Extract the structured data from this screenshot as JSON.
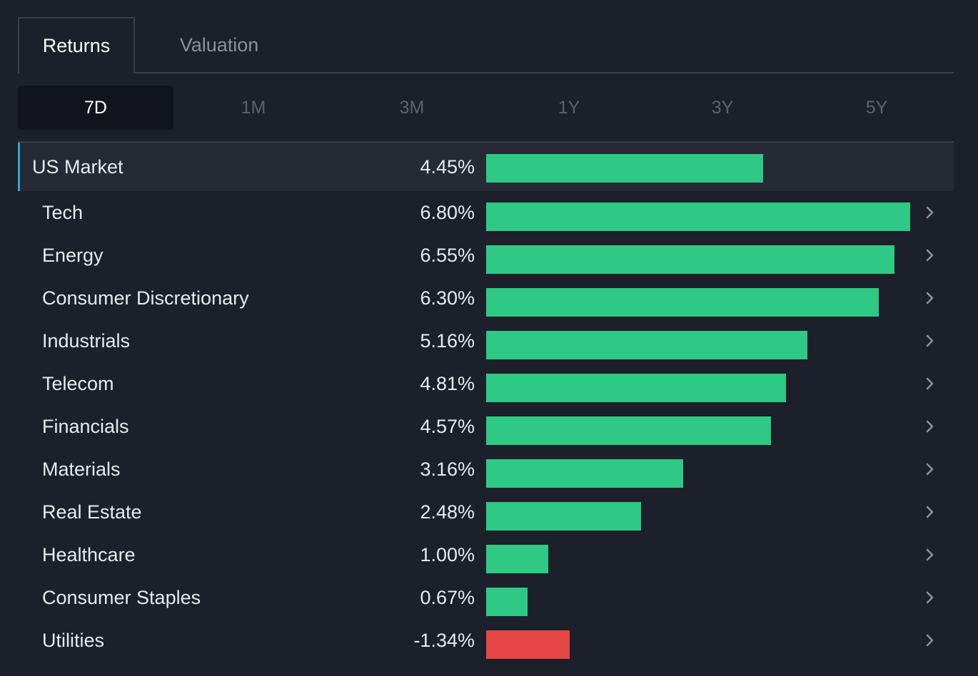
{
  "tabs": [
    {
      "label": "Returns",
      "active": true
    },
    {
      "label": "Valuation",
      "active": false
    }
  ],
  "periods": [
    {
      "label": "7D",
      "active": true
    },
    {
      "label": "1M",
      "active": false
    },
    {
      "label": "3M",
      "active": false
    },
    {
      "label": "1Y",
      "active": false
    },
    {
      "label": "3Y",
      "active": false
    },
    {
      "label": "5Y",
      "active": false
    }
  ],
  "colors": {
    "positive": "#2ec985",
    "negative": "#e64545",
    "accent": "#2ea6d8"
  },
  "chart_data": {
    "type": "bar",
    "orientation": "horizontal",
    "categories": [
      "US Market",
      "Tech",
      "Energy",
      "Consumer Discretionary",
      "Industrials",
      "Telecom",
      "Financials",
      "Materials",
      "Real Estate",
      "Healthcare",
      "Consumer Staples",
      "Utilities"
    ],
    "values": [
      4.45,
      6.8,
      6.55,
      6.3,
      5.16,
      4.81,
      4.57,
      3.16,
      2.48,
      1.0,
      0.67,
      -1.34
    ],
    "value_labels": [
      "4.45%",
      "6.80%",
      "6.55%",
      "6.30%",
      "5.16%",
      "4.81%",
      "4.57%",
      "3.16%",
      "2.48%",
      "1.00%",
      "0.67%",
      "-1.34%"
    ]
  },
  "rows_icon": "chevron-right-icon"
}
